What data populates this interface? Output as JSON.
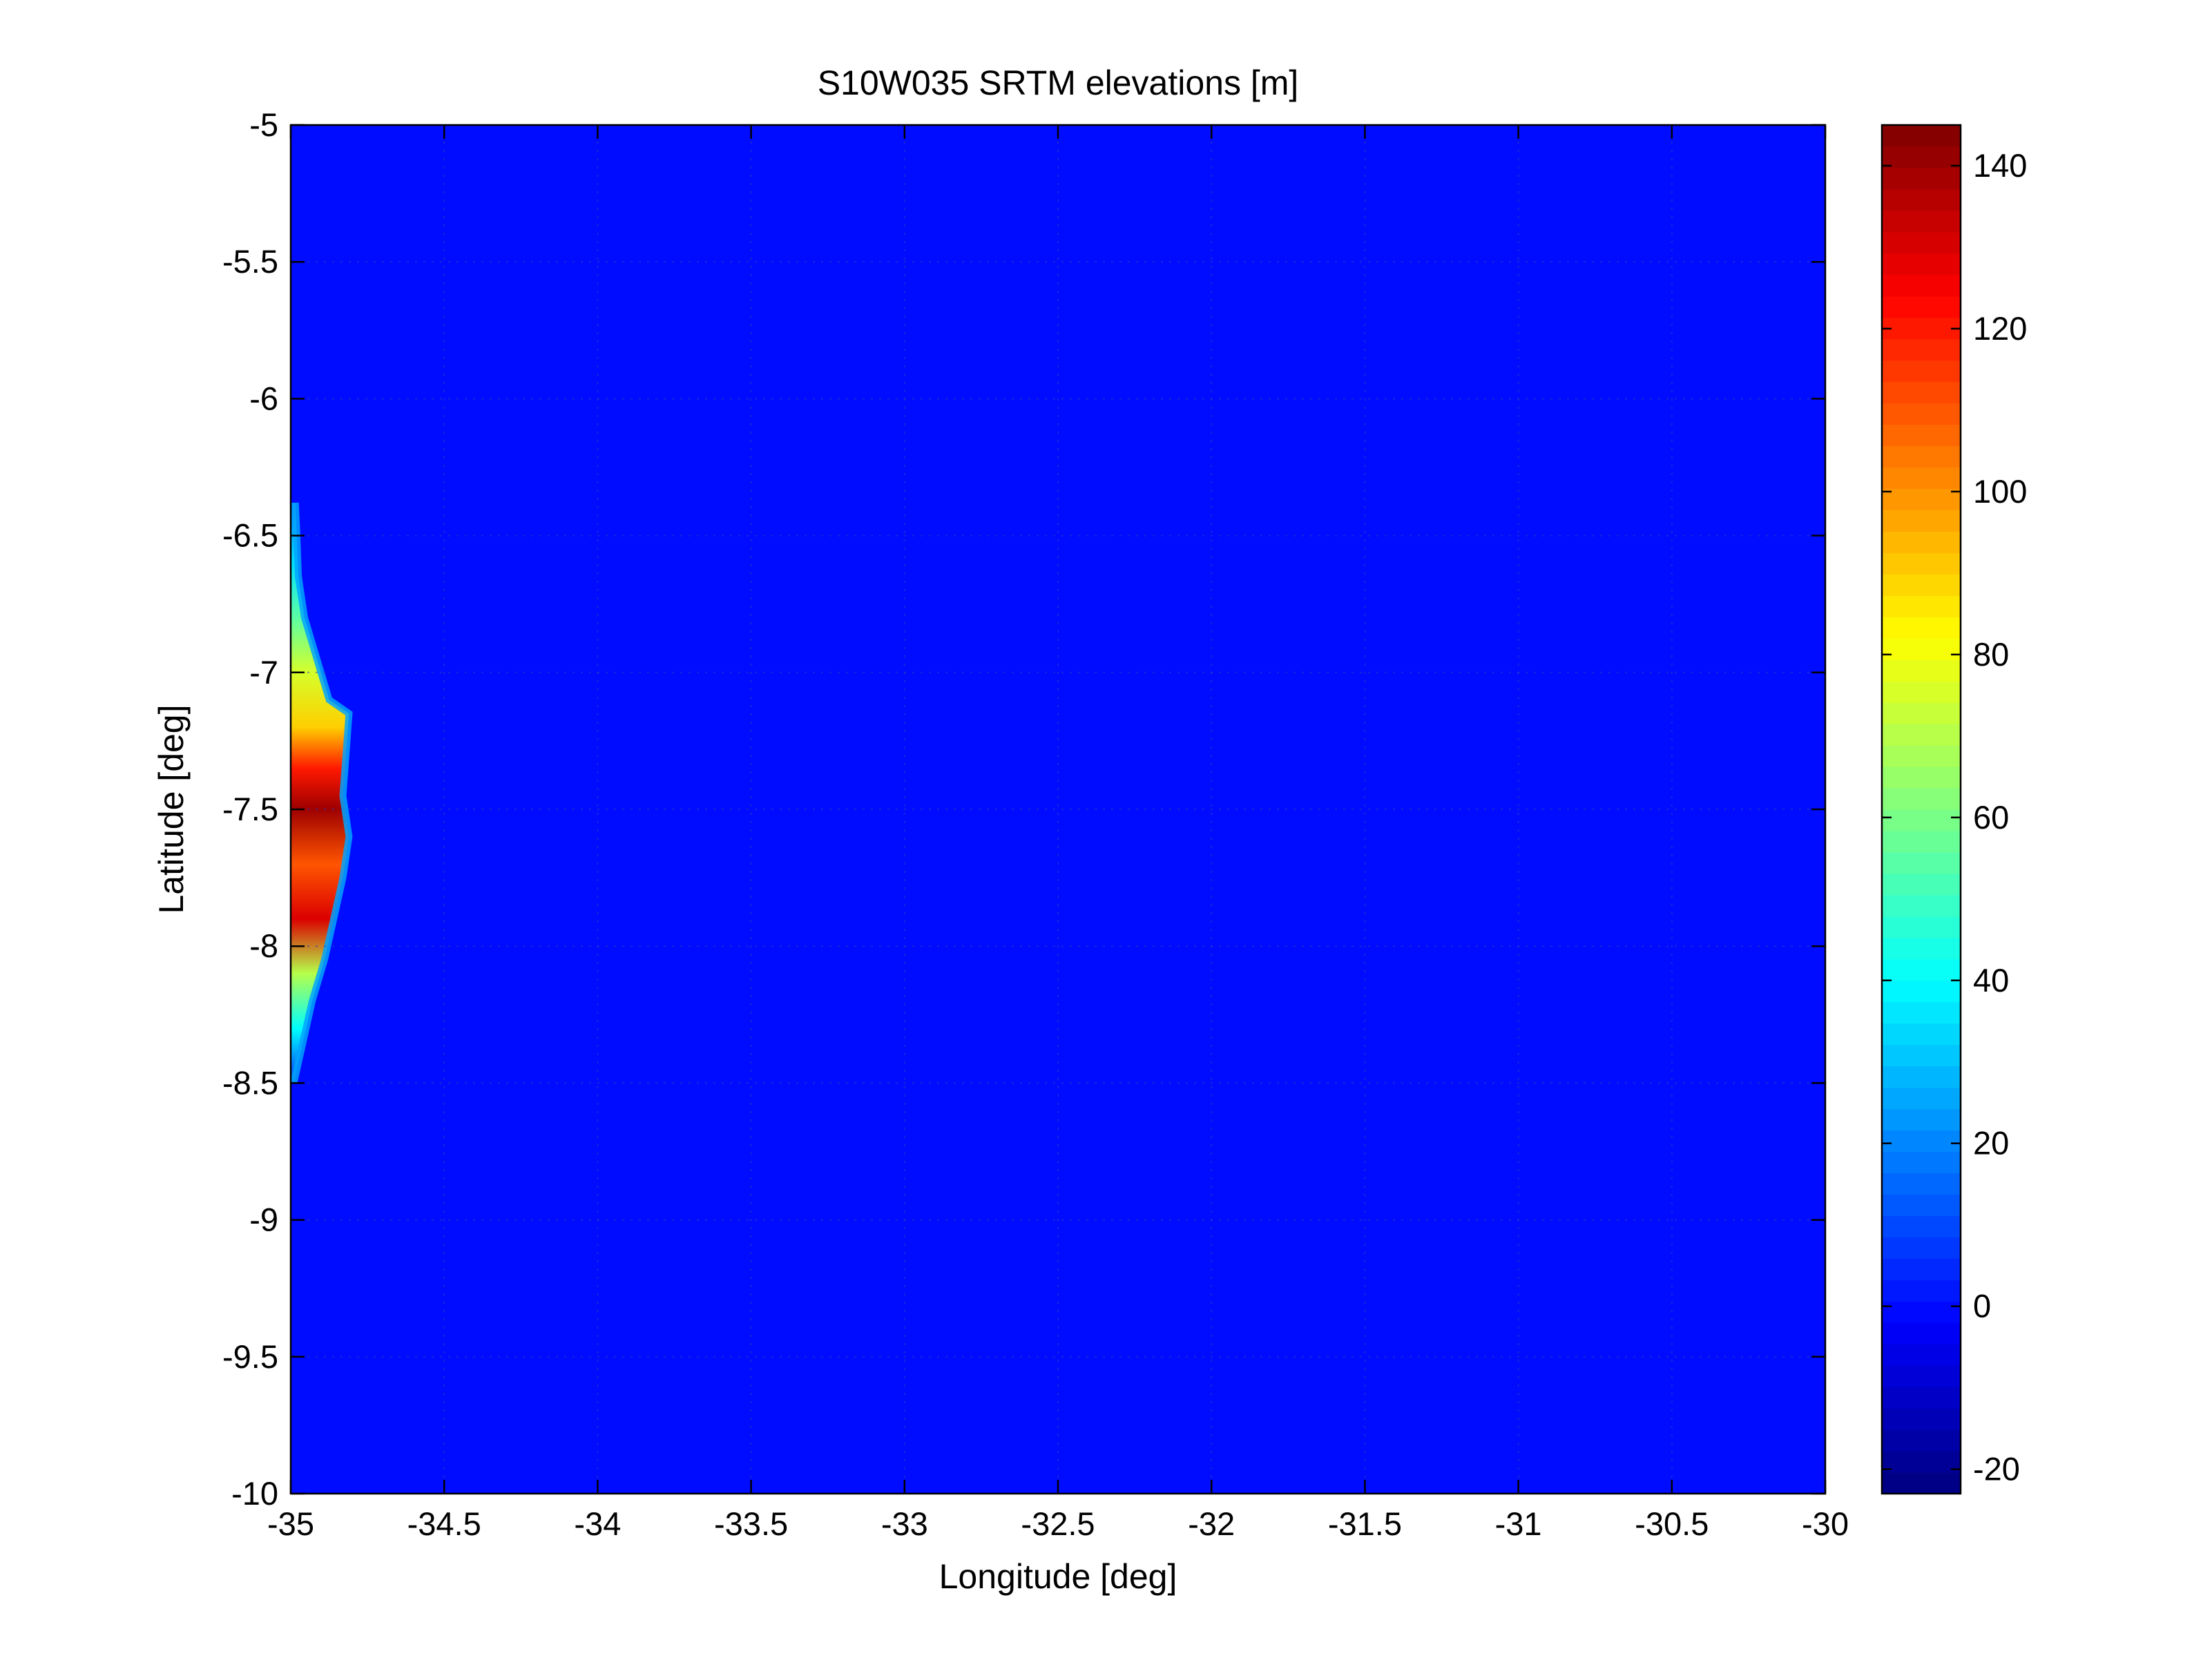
{
  "chart_data": {
    "type": "heatmap",
    "title": "S10W035 SRTM elevations [m]",
    "xlabel": "Longitude [deg]",
    "ylabel": "Latitude [deg]",
    "xlim": [
      -35,
      -30
    ],
    "ylim": [
      -10,
      -5
    ],
    "xticks": [
      -35,
      -34.5,
      -34,
      -33.5,
      -33,
      -32.5,
      -32,
      -31.5,
      -31,
      -30.5,
      -30
    ],
    "xtick_labels": [
      "-35",
      "-34.5",
      "-34",
      "-33.5",
      "-33",
      "-32.5",
      "-32",
      "-31.5",
      "-31",
      "-30.5",
      "-30"
    ],
    "yticks": [
      -5,
      -5.5,
      -6,
      -6.5,
      -7,
      -7.5,
      -8,
      -8.5,
      -9,
      -9.5,
      -10
    ],
    "ytick_labels": [
      "-5",
      "-5.5",
      "-6",
      "-6.5",
      "-7",
      "-7.5",
      "-8",
      "-8.5",
      "-9",
      "-9.5",
      "-10"
    ],
    "grid": true,
    "colormap": "jet",
    "background_value": 0,
    "colorbar": {
      "range": [
        -23,
        145
      ],
      "ticks": [
        -20,
        0,
        20,
        40,
        60,
        80,
        100,
        120,
        140
      ],
      "tick_labels": [
        "-20",
        "0",
        "20",
        "40",
        "60",
        "80",
        "100",
        "120",
        "140"
      ]
    },
    "land": {
      "description_units": "degrees",
      "coast": [
        {
          "lat": -6.38,
          "lon": -34.985
        },
        {
          "lat": -6.5,
          "lon": -34.98
        },
        {
          "lat": -6.65,
          "lon": -34.975
        },
        {
          "lat": -6.8,
          "lon": -34.955
        },
        {
          "lat": -6.95,
          "lon": -34.915
        },
        {
          "lat": -7.1,
          "lon": -34.875
        },
        {
          "lat": -7.15,
          "lon": -34.81
        },
        {
          "lat": -7.3,
          "lon": -34.82
        },
        {
          "lat": -7.45,
          "lon": -34.83
        },
        {
          "lat": -7.6,
          "lon": -34.81
        },
        {
          "lat": -7.75,
          "lon": -34.83
        },
        {
          "lat": -7.9,
          "lon": -34.86
        },
        {
          "lat": -8.05,
          "lon": -34.89
        },
        {
          "lat": -8.2,
          "lon": -34.93
        },
        {
          "lat": -8.35,
          "lon": -34.96
        },
        {
          "lat": -8.5,
          "lon": -34.99
        }
      ],
      "elevation_profile": [
        {
          "lat": -6.4,
          "value": 20
        },
        {
          "lat": -6.6,
          "value": 35
        },
        {
          "lat": -6.8,
          "value": 55
        },
        {
          "lat": -7.0,
          "value": 75
        },
        {
          "lat": -7.2,
          "value": 90
        },
        {
          "lat": -7.35,
          "value": 120
        },
        {
          "lat": -7.5,
          "value": 140
        },
        {
          "lat": -7.7,
          "value": 110
        },
        {
          "lat": -7.9,
          "value": 130
        },
        {
          "lat": -8.1,
          "value": 70
        },
        {
          "lat": -8.3,
          "value": 40
        },
        {
          "lat": -8.45,
          "value": 15
        }
      ]
    }
  }
}
